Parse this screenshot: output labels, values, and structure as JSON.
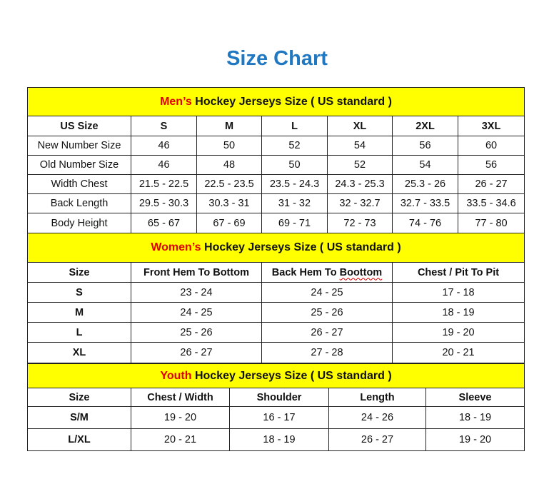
{
  "title": "Size Chart",
  "colors": {
    "title": "#1f78c1",
    "header_bg": "#ffff00",
    "accent": "#e00000"
  },
  "men": {
    "header_accent": "Men’s",
    "header_rest": " Hockey Jerseys Size ( US standard )",
    "columns": [
      "US Size",
      "S",
      "M",
      "L",
      "XL",
      "2XL",
      "3XL"
    ],
    "rows": [
      [
        "New Number Size",
        "46",
        "50",
        "52",
        "54",
        "56",
        "60"
      ],
      [
        "Old Number Size",
        "46",
        "48",
        "50",
        "52",
        "54",
        "56"
      ],
      [
        "Width Chest",
        "21.5 - 22.5",
        "22.5 - 23.5",
        "23.5 - 24.3",
        "24.3 - 25.3",
        "25.3 - 26",
        "26 - 27"
      ],
      [
        "Back Length",
        "29.5 - 30.3",
        "30.3 - 31",
        "31 - 32",
        "32 - 32.7",
        "32.7 - 33.5",
        "33.5 - 34.6"
      ],
      [
        "Body Height",
        "65 - 67",
        "67 - 69",
        "69 - 71",
        "72 - 73",
        "74 - 76",
        "77 - 80"
      ]
    ]
  },
  "women": {
    "header_accent": "Women’s",
    "header_rest": " Hockey Jerseys Size ( US standard )",
    "columns": [
      "Size",
      "Front Hem To Bottom",
      "Back Hem To Boottom",
      "Chest / Pit To Pit"
    ],
    "rows": [
      [
        "S",
        "23 - 24",
        "24 - 25",
        "17 - 18"
      ],
      [
        "M",
        "24 - 25",
        "25 - 26",
        "18 - 19"
      ],
      [
        "L",
        "25 - 26",
        "26 - 27",
        "19 - 20"
      ],
      [
        "XL",
        "26 - 27",
        "27 - 28",
        "20 - 21"
      ]
    ]
  },
  "youth": {
    "header_accent": "Youth",
    "header_rest": " Hockey Jerseys Size ( US standard )",
    "columns": [
      "Size",
      "Chest / Width",
      "Shoulder",
      "Length",
      "Sleeve"
    ],
    "rows": [
      [
        "S/M",
        "19 - 20",
        "16 - 17",
        "24 - 26",
        "18 - 19"
      ],
      [
        "L/XL",
        "20 - 21",
        "18 - 19",
        "26 - 27",
        "19 - 20"
      ]
    ]
  }
}
